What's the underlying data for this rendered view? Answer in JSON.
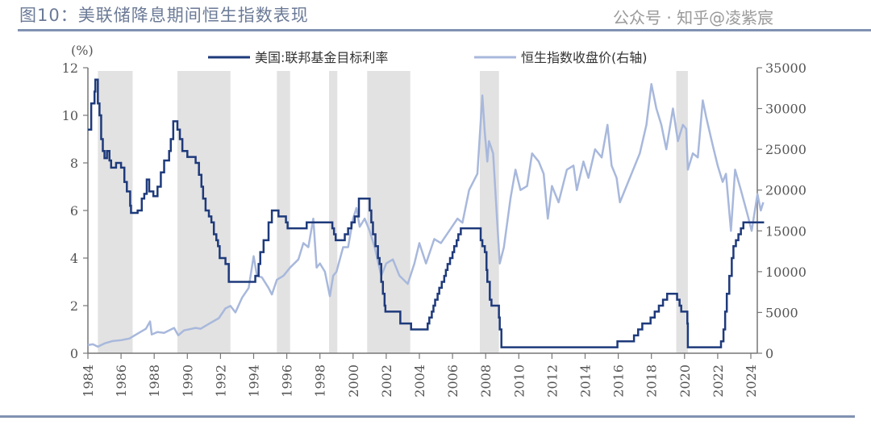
{
  "title": "图10：美联储降息期间恒生指数表现",
  "watermark": "公众号 · 知乎@凌紫宸",
  "chart_data": {
    "type": "line",
    "title": "",
    "left_axis": {
      "unit_label": "(%)",
      "range": [
        0,
        12
      ],
      "ticks": [
        0,
        2,
        4,
        6,
        8,
        10,
        12
      ]
    },
    "right_axis": {
      "range": [
        0,
        35000
      ],
      "ticks": [
        0,
        5000,
        10000,
        15000,
        20000,
        25000,
        30000,
        35000
      ]
    },
    "x_axis": {
      "range": [
        1984,
        2024.8
      ],
      "ticks": [
        1984,
        1986,
        1988,
        1990,
        1992,
        1994,
        1996,
        1998,
        2000,
        2002,
        2004,
        2006,
        2008,
        2010,
        2012,
        2014,
        2016,
        2018,
        2020,
        2022,
        2024
      ]
    },
    "grid": false,
    "legend": "top",
    "colors": {
      "fed": "#1e3a7b",
      "hsi": "#a8b8dc",
      "shade": "#e2e2e2",
      "axis": "#777777"
    },
    "shaded_periods": [
      [
        1984.6,
        1986.7
      ],
      [
        1989.4,
        1992.6
      ],
      [
        1995.4,
        1996.2
      ],
      [
        1998.55,
        1999.05
      ],
      [
        2000.85,
        2003.45
      ],
      [
        2007.65,
        2008.8
      ],
      [
        2019.5,
        2020.2
      ]
    ],
    "series": [
      {
        "name": "美国:联邦基金目标利率",
        "axis": "left",
        "step": true,
        "points": [
          [
            1984.0,
            9.4
          ],
          [
            1984.2,
            10.5
          ],
          [
            1984.4,
            11.0
          ],
          [
            1984.45,
            11.5
          ],
          [
            1984.6,
            10.5
          ],
          [
            1984.7,
            10.0
          ],
          [
            1984.8,
            9.0
          ],
          [
            1984.9,
            8.5
          ],
          [
            1985.0,
            8.2
          ],
          [
            1985.15,
            8.5
          ],
          [
            1985.3,
            8.1
          ],
          [
            1985.4,
            7.8
          ],
          [
            1985.7,
            8.0
          ],
          [
            1986.0,
            7.8
          ],
          [
            1986.2,
            7.2
          ],
          [
            1986.35,
            6.8
          ],
          [
            1986.55,
            6.2
          ],
          [
            1986.6,
            5.9
          ],
          [
            1987.0,
            6.0
          ],
          [
            1987.25,
            6.5
          ],
          [
            1987.4,
            6.7
          ],
          [
            1987.55,
            7.3
          ],
          [
            1987.7,
            6.8
          ],
          [
            1987.95,
            6.6
          ],
          [
            1988.2,
            7.0
          ],
          [
            1988.4,
            7.6
          ],
          [
            1988.6,
            8.1
          ],
          [
            1988.9,
            8.5
          ],
          [
            1989.0,
            9.0
          ],
          [
            1989.15,
            9.75
          ],
          [
            1989.4,
            9.4
          ],
          [
            1989.55,
            9.0
          ],
          [
            1989.7,
            8.5
          ],
          [
            1990.0,
            8.25
          ],
          [
            1990.5,
            8.0
          ],
          [
            1990.7,
            7.5
          ],
          [
            1990.85,
            7.0
          ],
          [
            1990.95,
            6.5
          ],
          [
            1991.1,
            6.0
          ],
          [
            1991.3,
            5.75
          ],
          [
            1991.45,
            5.5
          ],
          [
            1991.6,
            5.0
          ],
          [
            1991.75,
            4.75
          ],
          [
            1991.85,
            4.5
          ],
          [
            1991.95,
            4.0
          ],
          [
            1992.3,
            3.75
          ],
          [
            1992.5,
            3.0
          ],
          [
            1994.1,
            3.25
          ],
          [
            1994.3,
            3.75
          ],
          [
            1994.4,
            4.25
          ],
          [
            1994.6,
            4.75
          ],
          [
            1994.9,
            5.5
          ],
          [
            1995.1,
            6.0
          ],
          [
            1995.5,
            5.75
          ],
          [
            1995.95,
            5.5
          ],
          [
            1996.05,
            5.25
          ],
          [
            1997.2,
            5.5
          ],
          [
            1998.75,
            5.25
          ],
          [
            1998.85,
            5.0
          ],
          [
            1998.95,
            4.75
          ],
          [
            1999.5,
            5.0
          ],
          [
            1999.7,
            5.25
          ],
          [
            1999.9,
            5.5
          ],
          [
            2000.1,
            5.75
          ],
          [
            2000.35,
            6.5
          ],
          [
            2001.0,
            6.0
          ],
          [
            2001.1,
            5.5
          ],
          [
            2001.2,
            5.0
          ],
          [
            2001.35,
            4.5
          ],
          [
            2001.5,
            4.0
          ],
          [
            2001.6,
            3.75
          ],
          [
            2001.7,
            3.0
          ],
          [
            2001.8,
            2.5
          ],
          [
            2001.9,
            2.0
          ],
          [
            2001.95,
            1.75
          ],
          [
            2002.85,
            1.25
          ],
          [
            2003.5,
            1.0
          ],
          [
            2004.5,
            1.25
          ],
          [
            2004.6,
            1.5
          ],
          [
            2004.75,
            1.75
          ],
          [
            2004.85,
            2.0
          ],
          [
            2004.95,
            2.25
          ],
          [
            2005.1,
            2.5
          ],
          [
            2005.2,
            2.75
          ],
          [
            2005.35,
            3.0
          ],
          [
            2005.5,
            3.25
          ],
          [
            2005.6,
            3.5
          ],
          [
            2005.7,
            3.75
          ],
          [
            2005.85,
            4.0
          ],
          [
            2006.0,
            4.25
          ],
          [
            2006.1,
            4.5
          ],
          [
            2006.25,
            4.75
          ],
          [
            2006.35,
            5.0
          ],
          [
            2006.5,
            5.25
          ],
          [
            2007.7,
            4.75
          ],
          [
            2007.8,
            4.5
          ],
          [
            2007.95,
            4.25
          ],
          [
            2008.05,
            3.5
          ],
          [
            2008.1,
            3.0
          ],
          [
            2008.25,
            2.25
          ],
          [
            2008.35,
            2.0
          ],
          [
            2008.8,
            1.5
          ],
          [
            2008.85,
            1.0
          ],
          [
            2008.95,
            0.25
          ],
          [
            2015.95,
            0.5
          ],
          [
            2016.95,
            0.75
          ],
          [
            2017.2,
            1.0
          ],
          [
            2017.45,
            1.25
          ],
          [
            2017.95,
            1.5
          ],
          [
            2018.2,
            1.75
          ],
          [
            2018.45,
            2.0
          ],
          [
            2018.7,
            2.25
          ],
          [
            2018.95,
            2.5
          ],
          [
            2019.55,
            2.25
          ],
          [
            2019.7,
            2.0
          ],
          [
            2019.8,
            1.75
          ],
          [
            2020.17,
            1.25
          ],
          [
            2020.2,
            0.25
          ],
          [
            2022.2,
            0.5
          ],
          [
            2022.35,
            1.0
          ],
          [
            2022.45,
            1.75
          ],
          [
            2022.55,
            2.5
          ],
          [
            2022.7,
            3.25
          ],
          [
            2022.85,
            4.0
          ],
          [
            2022.95,
            4.5
          ],
          [
            2023.1,
            4.75
          ],
          [
            2023.25,
            5.0
          ],
          [
            2023.4,
            5.25
          ],
          [
            2023.55,
            5.5
          ],
          [
            2024.8,
            5.5
          ]
        ]
      },
      {
        "name": "恒生指数收盘价(右轴)",
        "axis": "right",
        "step": false,
        "points": [
          [
            1984.0,
            1000
          ],
          [
            1984.3,
            1100
          ],
          [
            1984.6,
            800
          ],
          [
            1985.0,
            1200
          ],
          [
            1985.5,
            1500
          ],
          [
            1986.0,
            1600
          ],
          [
            1986.5,
            1800
          ],
          [
            1987.0,
            2400
          ],
          [
            1987.5,
            3000
          ],
          [
            1987.75,
            3900
          ],
          [
            1987.85,
            2300
          ],
          [
            1988.2,
            2600
          ],
          [
            1988.6,
            2500
          ],
          [
            1989.2,
            3100
          ],
          [
            1989.45,
            2200
          ],
          [
            1989.8,
            2800
          ],
          [
            1990.5,
            3100
          ],
          [
            1990.8,
            3000
          ],
          [
            1991.3,
            3600
          ],
          [
            1991.9,
            4300
          ],
          [
            1992.3,
            5500
          ],
          [
            1992.6,
            5800
          ],
          [
            1992.9,
            5000
          ],
          [
            1993.3,
            6800
          ],
          [
            1993.7,
            8000
          ],
          [
            1994.0,
            11900
          ],
          [
            1994.2,
            9500
          ],
          [
            1994.5,
            9300
          ],
          [
            1994.9,
            8000
          ],
          [
            1995.1,
            7200
          ],
          [
            1995.4,
            9000
          ],
          [
            1995.8,
            9500
          ],
          [
            1996.2,
            10500
          ],
          [
            1996.7,
            11500
          ],
          [
            1997.0,
            13500
          ],
          [
            1997.3,
            13000
          ],
          [
            1997.6,
            16500
          ],
          [
            1997.8,
            10500
          ],
          [
            1998.0,
            11000
          ],
          [
            1998.3,
            10000
          ],
          [
            1998.6,
            7000
          ],
          [
            1998.8,
            9500
          ],
          [
            1999.0,
            10000
          ],
          [
            1999.4,
            13000
          ],
          [
            1999.7,
            13000
          ],
          [
            2000.0,
            16500
          ],
          [
            2000.2,
            17800
          ],
          [
            2000.4,
            15500
          ],
          [
            2000.7,
            16500
          ],
          [
            2001.0,
            15000
          ],
          [
            2001.3,
            13000
          ],
          [
            2001.7,
            9500
          ],
          [
            2002.0,
            11000
          ],
          [
            2002.4,
            11500
          ],
          [
            2002.8,
            9500
          ],
          [
            2003.3,
            8500
          ],
          [
            2003.7,
            11000
          ],
          [
            2004.0,
            13500
          ],
          [
            2004.4,
            11000
          ],
          [
            2004.9,
            14000
          ],
          [
            2005.3,
            13500
          ],
          [
            2005.8,
            15000
          ],
          [
            2006.3,
            16500
          ],
          [
            2006.6,
            16000
          ],
          [
            2007.0,
            20000
          ],
          [
            2007.5,
            22000
          ],
          [
            2007.8,
            31600
          ],
          [
            2007.95,
            27000
          ],
          [
            2008.1,
            23500
          ],
          [
            2008.2,
            26000
          ],
          [
            2008.45,
            24500
          ],
          [
            2008.7,
            16000
          ],
          [
            2008.85,
            11000
          ],
          [
            2009.1,
            13000
          ],
          [
            2009.5,
            19000
          ],
          [
            2009.8,
            22500
          ],
          [
            2010.1,
            20000
          ],
          [
            2010.5,
            20500
          ],
          [
            2010.8,
            24500
          ],
          [
            2011.2,
            23500
          ],
          [
            2011.5,
            22000
          ],
          [
            2011.75,
            16500
          ],
          [
            2012.0,
            20500
          ],
          [
            2012.4,
            18500
          ],
          [
            2012.9,
            22500
          ],
          [
            2013.3,
            23000
          ],
          [
            2013.5,
            20000
          ],
          [
            2013.9,
            23500
          ],
          [
            2014.2,
            21500
          ],
          [
            2014.6,
            25000
          ],
          [
            2015.0,
            24000
          ],
          [
            2015.35,
            28000
          ],
          [
            2015.6,
            23000
          ],
          [
            2015.9,
            21500
          ],
          [
            2016.1,
            18500
          ],
          [
            2016.5,
            20500
          ],
          [
            2016.9,
            22500
          ],
          [
            2017.3,
            24500
          ],
          [
            2017.7,
            28000
          ],
          [
            2018.0,
            33000
          ],
          [
            2018.3,
            30000
          ],
          [
            2018.6,
            28000
          ],
          [
            2018.9,
            25000
          ],
          [
            2019.3,
            30000
          ],
          [
            2019.6,
            26000
          ],
          [
            2019.9,
            28000
          ],
          [
            2020.1,
            27500
          ],
          [
            2020.2,
            22500
          ],
          [
            2020.5,
            24500
          ],
          [
            2020.8,
            24000
          ],
          [
            2021.1,
            31000
          ],
          [
            2021.3,
            29000
          ],
          [
            2021.7,
            25500
          ],
          [
            2022.0,
            23000
          ],
          [
            2022.3,
            21000
          ],
          [
            2022.5,
            22000
          ],
          [
            2022.8,
            15000
          ],
          [
            2023.05,
            22500
          ],
          [
            2023.4,
            20000
          ],
          [
            2023.8,
            17000
          ],
          [
            2024.05,
            15000
          ],
          [
            2024.4,
            19500
          ],
          [
            2024.6,
            17500
          ],
          [
            2024.75,
            18500
          ]
        ]
      }
    ]
  }
}
